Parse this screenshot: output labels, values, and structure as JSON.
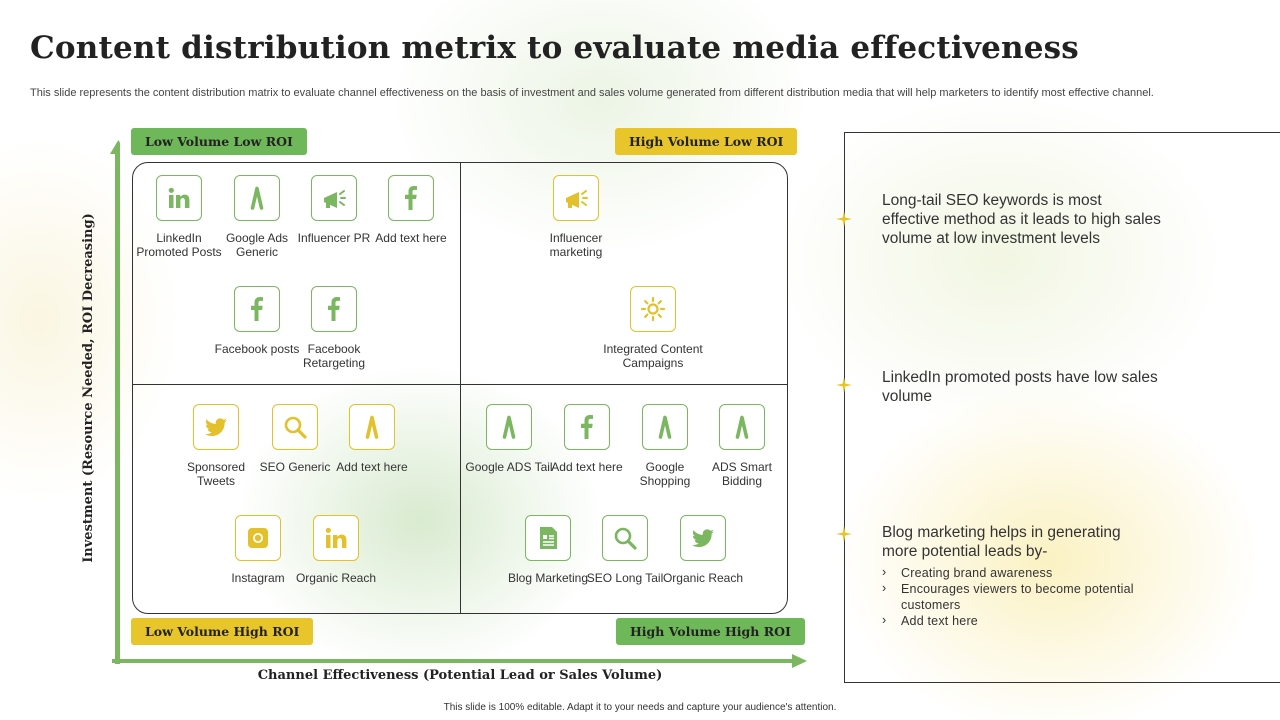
{
  "title": "Content distribution metrix to evaluate media effectiveness",
  "subtitle": "This slide represents the content distribution matrix to evaluate channel effectiveness on the basis of investment and sales volume generated from different distribution media that will help marketers to identify most effective channel.",
  "quadrant_labels": {
    "top_left": "Low Volume Low ROI",
    "top_right": "High Volume Low ROI",
    "bottom_left": "Low Volume High ROI",
    "bottom_right": "High Volume High ROI"
  },
  "axes": {
    "y_label": "Investment (Resource Needed, ROI Decreasing)",
    "x_label": "Channel Effectiveness (Potential Lead or Sales Volume)"
  },
  "quadrants": {
    "top_left": [
      {
        "label": "LinkedIn Promoted Posts",
        "icon": "linkedin-icon"
      },
      {
        "label": "Google Ads Generic",
        "icon": "google-ads-icon"
      },
      {
        "label": "Influencer PR",
        "icon": "megaphone-icon"
      },
      {
        "label": "Add text here",
        "icon": "facebook-icon"
      },
      {
        "label": "Facebook posts",
        "icon": "facebook-icon"
      },
      {
        "label": "Facebook Retargeting",
        "icon": "facebook-icon"
      }
    ],
    "top_right": [
      {
        "label": "Influencer marketing",
        "icon": "megaphone-icon"
      },
      {
        "label": "Integrated Content Campaigns",
        "icon": "sun-icon"
      }
    ],
    "bottom_left": [
      {
        "label": "Sponsored Tweets",
        "icon": "twitter-icon"
      },
      {
        "label": "SEO Generic",
        "icon": "search-icon"
      },
      {
        "label": "Add text here",
        "icon": "google-ads-icon"
      },
      {
        "label": "Instagram",
        "icon": "instagram-icon"
      },
      {
        "label": "Organic Reach",
        "icon": "linkedin-icon"
      }
    ],
    "bottom_right": [
      {
        "label": "Google ADS Tail",
        "icon": "google-ads-icon"
      },
      {
        "label": "Add text here",
        "icon": "facebook-icon"
      },
      {
        "label": "Google Shopping",
        "icon": "google-ads-icon"
      },
      {
        "label": "ADS Smart Bidding",
        "icon": "google-ads-icon"
      },
      {
        "label": "Blog Marketing",
        "icon": "blog-icon"
      },
      {
        "label": "SEO Long Tail",
        "icon": "search-icon"
      },
      {
        "label": "Organic Reach",
        "icon": "twitter-icon"
      }
    ]
  },
  "notes": [
    {
      "text": "Long-tail SEO keywords is most effective method as it leads to high sales volume at low investment levels"
    },
    {
      "text": "LinkedIn promoted posts have low sales volume"
    },
    {
      "text": "Blog marketing helps in generating more potential leads by-",
      "bullets": [
        "Creating brand awareness",
        "Encourages viewers to become potential customers",
        "Add text here"
      ]
    }
  ],
  "footer": "This slide is 100% editable. Adapt it to your needs and capture your audience's attention.",
  "colors": {
    "green": "#6fb85a",
    "yellow": "#e8c62b",
    "icon_green": "#7bb661",
    "icon_yellow": "#e2c12c"
  }
}
